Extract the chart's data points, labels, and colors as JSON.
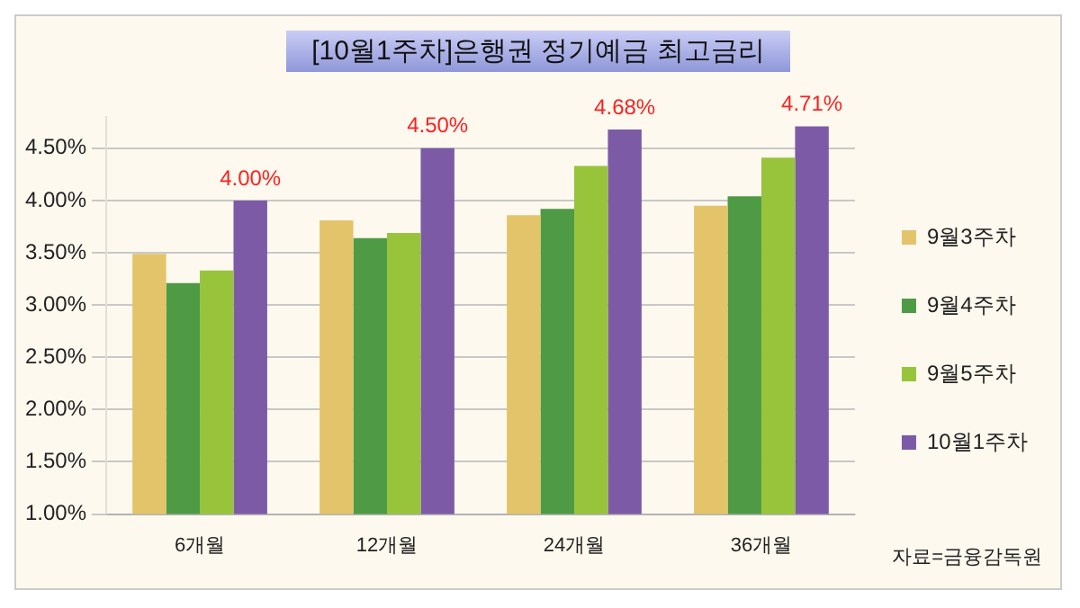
{
  "chart_data": {
    "type": "bar",
    "title": "[10월1주차]은행권 정기예금  최고금리",
    "categories": [
      "6개월",
      "12개월",
      "24개월",
      "36개월"
    ],
    "series": [
      {
        "name": "9월3주차",
        "color": "#e3c46a",
        "values": [
          3.49,
          3.81,
          3.86,
          3.95
        ]
      },
      {
        "name": "9월4주차",
        "color": "#4f9a45",
        "values": [
          3.21,
          3.64,
          3.92,
          4.04
        ]
      },
      {
        "name": "9월5주차",
        "color": "#98c43c",
        "values": [
          3.33,
          3.69,
          4.33,
          4.41
        ]
      },
      {
        "name": "10월1주차",
        "color": "#7d5aa6",
        "values": [
          4.0,
          4.5,
          4.68,
          4.71
        ],
        "value_labels": [
          "4.00%",
          "4.50%",
          "4.68%",
          "4.71%"
        ]
      }
    ],
    "ylim": [
      1,
      4.8
    ],
    "yticks": [
      {
        "value": 1,
        "label": "1.00%"
      },
      {
        "value": 1.5,
        "label": "1.50%"
      },
      {
        "value": 2,
        "label": "2.00%"
      },
      {
        "value": 2.5,
        "label": "2.50%"
      },
      {
        "value": 3,
        "label": "3.00%"
      },
      {
        "value": 3.5,
        "label": "3.50%"
      },
      {
        "value": 4,
        "label": "4.00%"
      },
      {
        "value": 4.5,
        "label": "4.50%"
      }
    ],
    "grid": "y",
    "legend": "right",
    "annotations": [
      "자료=금융감독원"
    ]
  }
}
